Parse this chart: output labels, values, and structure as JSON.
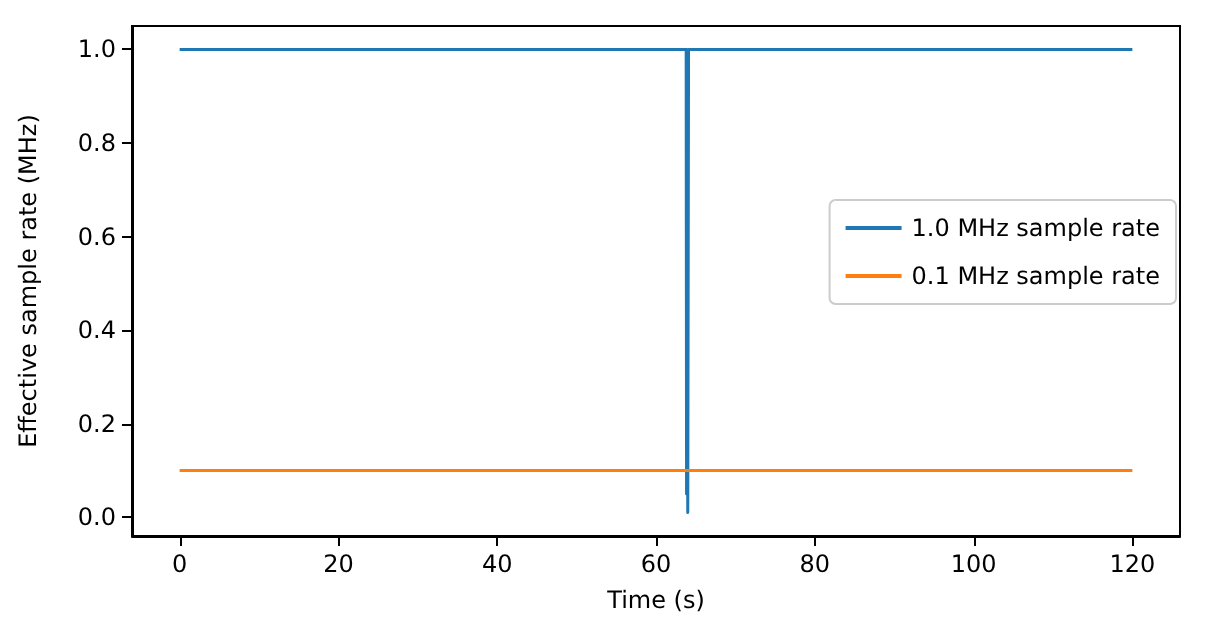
{
  "chart_data": {
    "type": "line",
    "xlabel": "Time (s)",
    "ylabel": "Effective sample rate (MHz)",
    "xlim": [
      -6,
      126
    ],
    "xticks": [
      0,
      20,
      40,
      60,
      80,
      100,
      120
    ],
    "ylim": [
      -0.04,
      1.05
    ],
    "yticks": [
      {
        "value": 0,
        "label": "0.0"
      },
      {
        "value": 0.2,
        "label": "0.2"
      },
      {
        "value": 0.4,
        "label": "0.4"
      },
      {
        "value": 0.6,
        "label": "0.6"
      },
      {
        "value": 0.8,
        "label": "0.8"
      },
      {
        "value": 1,
        "label": "1.0"
      }
    ],
    "grid": false,
    "legend": "right",
    "marker": "none",
    "line_style": "solid",
    "series": [
      {
        "name": "1.0 MHz sample rate",
        "color": "#1f77b4",
        "x": [
          0,
          63.8,
          63.85,
          63.9,
          64.0,
          64.1,
          120
        ],
        "values": [
          1.0,
          1.0,
          0.05,
          1.0,
          0.01,
          1.0,
          1.0
        ]
      },
      {
        "name": "0.1 MHz sample rate",
        "color": "#ff7f0e",
        "x": [
          0,
          120
        ],
        "values": [
          0.1,
          0.1
        ]
      }
    ]
  }
}
